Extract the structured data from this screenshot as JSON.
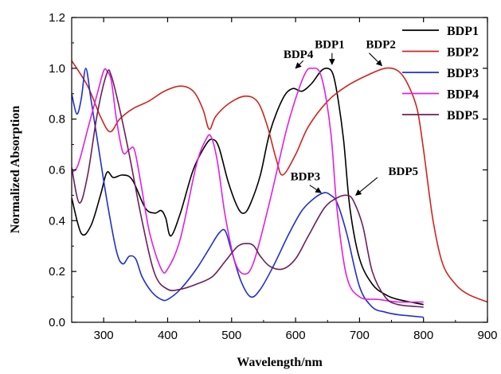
{
  "chart_data": {
    "type": "line",
    "xlabel": "Wavelength/nm",
    "ylabel": "Normalized Absorption",
    "xlim": [
      250,
      900
    ],
    "ylim": [
      0.0,
      1.2
    ],
    "xticks": [
      "300",
      "400",
      "500",
      "600",
      "700",
      "800",
      "900"
    ],
    "yticks": [
      "0.0",
      "0.2",
      "0.4",
      "0.6",
      "0.8",
      "1.0",
      "1.2"
    ],
    "grid": false,
    "legend_position": "top-right",
    "series": [
      {
        "name": "BDP1",
        "color": "#000000",
        "x": [
          250,
          265,
          280,
          295,
          305,
          315,
          330,
          345,
          365,
          380,
          390,
          397,
          405,
          420,
          440,
          460,
          470,
          480,
          495,
          510,
          520,
          530,
          545,
          560,
          580,
          595,
          610,
          625,
          640,
          650,
          658,
          665,
          675,
          685,
          700,
          720,
          740,
          760,
          800
        ],
        "y": [
          0.49,
          0.35,
          0.38,
          0.5,
          0.59,
          0.57,
          0.58,
          0.56,
          0.45,
          0.43,
          0.44,
          0.41,
          0.34,
          0.43,
          0.6,
          0.7,
          0.72,
          0.69,
          0.55,
          0.45,
          0.43,
          0.47,
          0.58,
          0.75,
          0.88,
          0.92,
          0.91,
          0.94,
          0.99,
          1.0,
          0.98,
          0.9,
          0.72,
          0.45,
          0.25,
          0.15,
          0.11,
          0.09,
          0.07
        ]
      },
      {
        "name": "BDP2",
        "color": "#d0241f",
        "x": [
          250,
          275,
          295,
          310,
          325,
          345,
          370,
          395,
          420,
          440,
          455,
          465,
          475,
          495,
          520,
          540,
          555,
          570,
          580,
          600,
          620,
          650,
          680,
          710,
          740,
          760,
          775,
          790,
          800,
          815,
          830,
          850,
          870,
          900
        ],
        "y": [
          1.03,
          0.93,
          0.81,
          0.75,
          0.8,
          0.84,
          0.87,
          0.91,
          0.93,
          0.91,
          0.84,
          0.76,
          0.81,
          0.86,
          0.89,
          0.87,
          0.78,
          0.64,
          0.58,
          0.66,
          0.77,
          0.87,
          0.93,
          0.97,
          1.0,
          0.99,
          0.94,
          0.84,
          0.68,
          0.4,
          0.23,
          0.15,
          0.11,
          0.08
        ]
      },
      {
        "name": "BDP3",
        "color": "#1f2fd0",
        "x": [
          250,
          258,
          265,
          272,
          280,
          290,
          305,
          320,
          330,
          340,
          350,
          360,
          375,
          390,
          400,
          420,
          445,
          465,
          480,
          490,
          500,
          515,
          530,
          545,
          565,
          590,
          610,
          630,
          645,
          655,
          665,
          680,
          700,
          720,
          740,
          760,
          800
        ],
        "y": [
          0.9,
          0.82,
          0.88,
          1.0,
          0.88,
          0.72,
          0.48,
          0.28,
          0.23,
          0.26,
          0.25,
          0.18,
          0.12,
          0.09,
          0.09,
          0.13,
          0.21,
          0.29,
          0.35,
          0.36,
          0.28,
          0.16,
          0.1,
          0.13,
          0.22,
          0.35,
          0.44,
          0.49,
          0.51,
          0.5,
          0.47,
          0.35,
          0.14,
          0.06,
          0.04,
          0.03,
          0.02
        ]
      },
      {
        "name": "BDP4",
        "color": "#e020e0",
        "x": [
          250,
          260,
          275,
          290,
          300,
          305,
          312,
          320,
          330,
          340,
          348,
          358,
          372,
          390,
          400,
          420,
          445,
          460,
          468,
          478,
          490,
          505,
          520,
          535,
          560,
          585,
          600,
          615,
          625,
          640,
          655,
          665,
          680,
          700,
          730,
          760,
          800
        ],
        "y": [
          0.59,
          0.62,
          0.76,
          0.9,
          0.99,
          0.99,
          0.95,
          0.8,
          0.67,
          0.68,
          0.68,
          0.55,
          0.35,
          0.21,
          0.21,
          0.33,
          0.62,
          0.72,
          0.73,
          0.63,
          0.42,
          0.24,
          0.19,
          0.24,
          0.48,
          0.75,
          0.88,
          0.98,
          1.0,
          0.97,
          0.75,
          0.44,
          0.18,
          0.1,
          0.09,
          0.08,
          0.08
        ]
      },
      {
        "name": "BDP5",
        "color": "#6b1f5a",
        "x": [
          250,
          262,
          275,
          290,
          305,
          312,
          325,
          340,
          360,
          380,
          400,
          420,
          445,
          470,
          490,
          510,
          525,
          535,
          545,
          560,
          580,
          600,
          620,
          645,
          665,
          680,
          690,
          705,
          720,
          740,
          760,
          800
        ],
        "y": [
          0.61,
          0.47,
          0.58,
          0.82,
          0.98,
          0.97,
          0.84,
          0.66,
          0.4,
          0.19,
          0.13,
          0.13,
          0.15,
          0.18,
          0.24,
          0.3,
          0.31,
          0.3,
          0.26,
          0.22,
          0.21,
          0.25,
          0.34,
          0.45,
          0.49,
          0.5,
          0.48,
          0.38,
          0.2,
          0.1,
          0.07,
          0.06
        ]
      }
    ],
    "annotations": [
      {
        "text": "BDP4",
        "x": 581,
        "y": 1.04,
        "arrow_from": [
          612,
          1.03
        ],
        "arrow_to": [
          600,
          1.0
        ]
      },
      {
        "text": "BDP1",
        "x": 630,
        "y": 1.08,
        "arrow_from": [
          657,
          1.06
        ],
        "arrow_to": [
          657,
          1.015
        ]
      },
      {
        "text": "BDP2",
        "x": 710,
        "y": 1.08,
        "arrow_from": [
          715,
          1.06
        ],
        "arrow_to": [
          735,
          1.01
        ]
      },
      {
        "text": "BDP3",
        "x": 592,
        "y": 0.56,
        "arrow_from": [
          622,
          0.54
        ],
        "arrow_to": [
          640,
          0.51
        ]
      },
      {
        "text": "BDP5",
        "x": 745,
        "y": 0.58,
        "arrow_from": [
          728,
          0.57
        ],
        "arrow_to": [
          694,
          0.5
        ]
      }
    ]
  }
}
